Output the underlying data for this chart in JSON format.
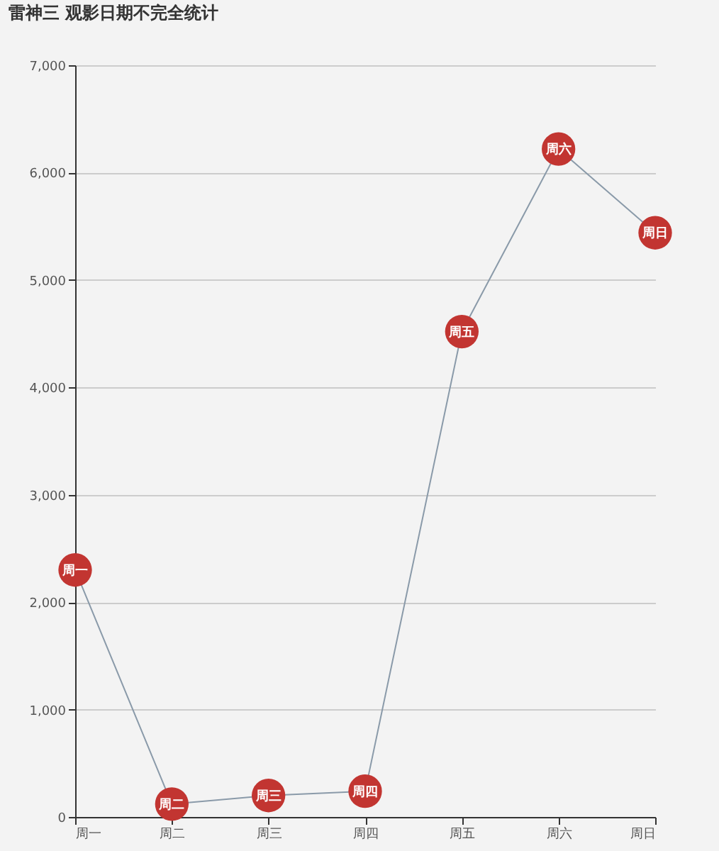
{
  "chart_data": {
    "type": "line",
    "title": "雷神三 观影日期不完全统计",
    "categories": [
      "周一",
      "周二",
      "周三",
      "周四",
      "周五",
      "周六",
      "周日"
    ],
    "series": [
      {
        "color": "#c23531",
        "values": [
          2300,
          120,
          200,
          240,
          4520,
          6220,
          5440
        ]
      }
    ],
    "ylim": [
      0,
      7000
    ],
    "yticks": [
      0,
      {
        "value": 1000,
        "label": "1,000"
      },
      {
        "value": 2000,
        "label": "2,000"
      },
      {
        "value": 3000,
        "label": "3,000"
      },
      {
        "value": 4000,
        "label": "4,000"
      },
      {
        "value": 5000,
        "label": "5,000"
      },
      {
        "value": 6000,
        "label": "6,000"
      },
      {
        "value": 7000,
        "label": "7,000"
      }
    ],
    "grid": "y",
    "marker": "circle",
    "legend": false
  }
}
